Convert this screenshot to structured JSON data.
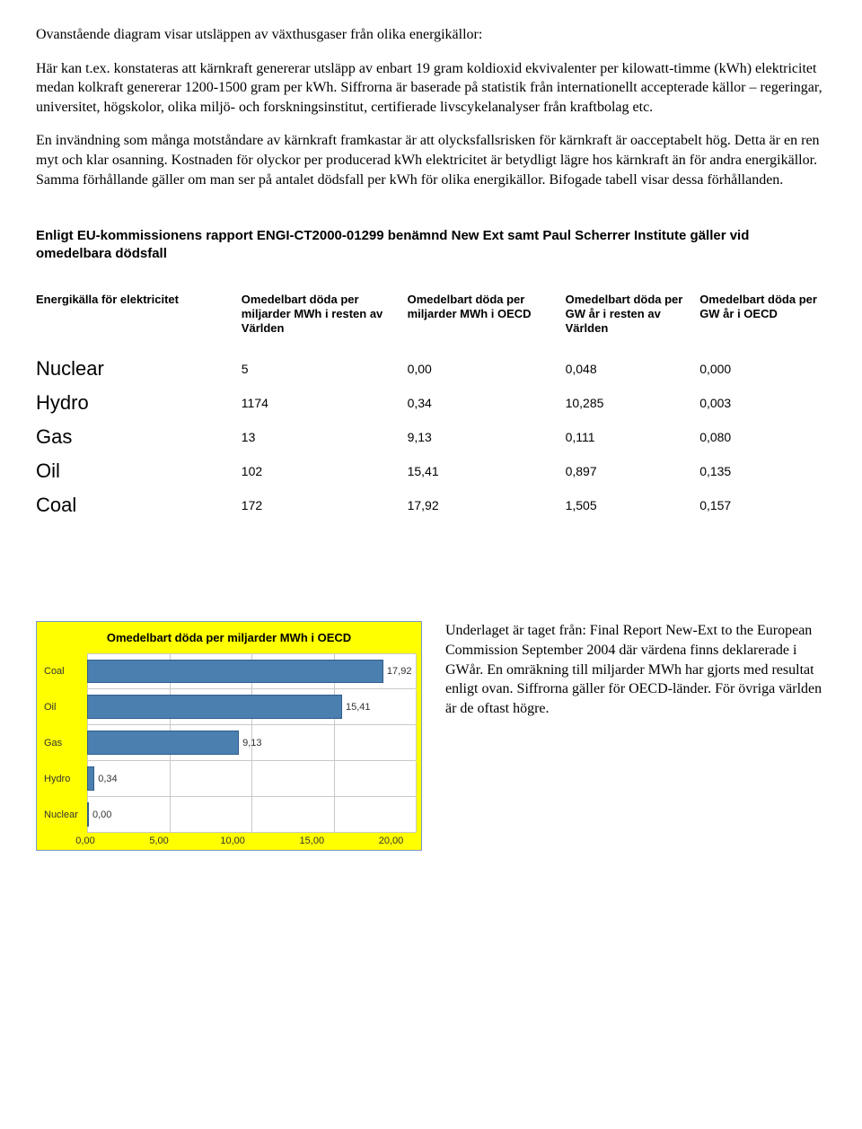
{
  "paragraphs": {
    "p1": "Ovanstående diagram visar utsläppen av växthusgaser från olika energikällor:",
    "p2": "Här kan t.ex. konstateras att kärnkraft genererar utsläpp av enbart 19 gram koldioxid ekvivalenter per kilowatt-timme (kWh) elektricitet medan kolkraft genererar 1200-1500 gram per kWh. Siffrorna är baserade på statistik från internationellt accepterade källor – regeringar, universitet, högskolor, olika miljö- och forskningsinstitut, certifierade livscykelanalyser från kraftbolag etc.",
    "p3": "En invändning som många motståndare av kärnkraft framkastar är att olycksfallsrisken för kärnkraft är oacceptabelt hög. Detta är en ren myt och klar osanning. Kostnaden för olyckor per producerad kWh elektricitet är betydligt lägre hos kärnkraft än för andra energikällor. Samma förhållande gäller om man ser på antalet dödsfall per kWh för olika energikällor. Bifogade tabell visar dessa förhållanden."
  },
  "table": {
    "title": "Enligt EU-kommissionens rapport  ENGI-CT2000-01299 benämnd New Ext samt  Paul Scherrer Institute gäller  vid omedelbara dödsfall",
    "columns": [
      "Energikälla för elektricitet",
      "Omedelbart döda  per miljarder MWh i resten av Världen",
      "Omedelbart döda  per miljarder MWh i OECD",
      "Omedelbart döda per GW år i resten av Världen",
      "Omedelbart döda per GW år i OECD"
    ],
    "col_widths": [
      "26%",
      "21%",
      "20%",
      "17%",
      "16%"
    ],
    "rows": [
      [
        "Nuclear",
        "5",
        "0,00",
        "0,048",
        "0,000"
      ],
      [
        "Hydro",
        "1174",
        "0,34",
        "10,285",
        "0,003"
      ],
      [
        "Gas",
        "13",
        "9,13",
        "0,111",
        "0,080"
      ],
      [
        "Oil",
        "102",
        "15,41",
        "0,897",
        "0,135"
      ],
      [
        "Coal",
        "172",
        "17,92",
        "1,505",
        "0,157"
      ]
    ]
  },
  "chart": {
    "type": "bar-horizontal",
    "title": "Omedelbart döda  per miljarder MWh i OECD",
    "categories": [
      "Coal",
      "Oil",
      "Gas",
      "Hydro",
      "Nuclear"
    ],
    "values": [
      17.92,
      15.41,
      9.13,
      0.34,
      0.0
    ],
    "value_labels": [
      "17,92",
      "15,41",
      "9,13",
      "0,34",
      "0,00"
    ],
    "xlim": [
      0,
      20
    ],
    "xticks": [
      "0,00",
      "5,00",
      "10,00",
      "15,00",
      "20,00"
    ],
    "bar_color": "#4a7fb0",
    "bar_border_color": "#2f5e8e",
    "background_color": "#ffff00",
    "plot_background": "#ffffff",
    "grid_color": "#c9c9c9",
    "frame_border_color": "#7a99c8",
    "label_fontsize": 11,
    "title_fontsize": 13
  },
  "caption": "Underlaget är taget från: Final Report New-Ext to the European Commission September 2004 där värdena finns deklarerade i GWår. En omräkning till miljarder MWh har gjorts med resultat enligt ovan. Siffrorna gäller för OECD-länder. För övriga världen är de oftast högre."
}
